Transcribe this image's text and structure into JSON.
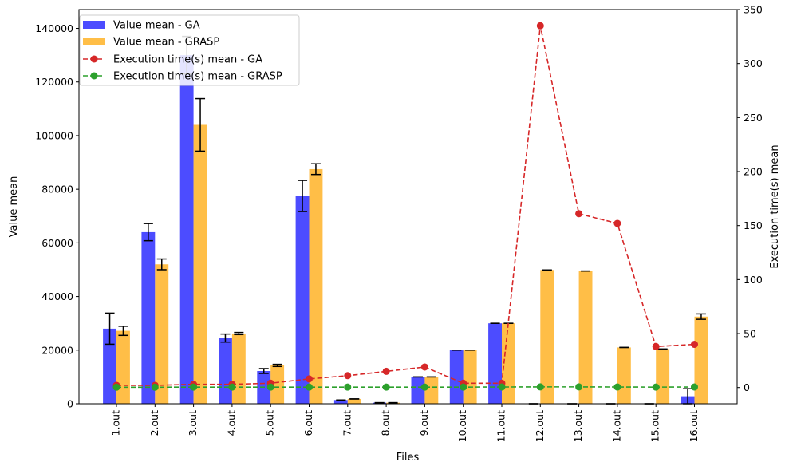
{
  "chart_data": {
    "type": "bar",
    "xlabel": "Files",
    "ylabel": "Value mean",
    "y2label": "Execution time(s) mean",
    "categories": [
      "1.out",
      "2.out",
      "3.out",
      "4.out",
      "5.out",
      "6.out",
      "7.out",
      "8.out",
      "9.out",
      "10.out",
      "11.out",
      "12.out",
      "13.out",
      "14.out",
      "15.out",
      "16.out"
    ],
    "ylim": [
      0,
      147000
    ],
    "y2lim": [
      -15,
      350
    ],
    "yticks": [
      0,
      20000,
      40000,
      60000,
      80000,
      100000,
      120000,
      140000
    ],
    "y2ticks": [
      0,
      50,
      100,
      150,
      200,
      250,
      300,
      350
    ],
    "legend_position": "top-left",
    "grid": false,
    "bar_series": [
      {
        "name": "Value mean - GA",
        "color": "#0000ff",
        "values": [
          28000,
          64000,
          130000,
          24500,
          12200,
          77500,
          1400,
          400,
          10000,
          20000,
          30000,
          0,
          0,
          0,
          0,
          2800
        ],
        "errors": [
          5800,
          3200,
          7000,
          1500,
          900,
          5800,
          0,
          0,
          0,
          0,
          0,
          0,
          0,
          0,
          0,
          2800
        ]
      },
      {
        "name": "Value mean - GRASP",
        "color": "#ffa500",
        "values": [
          27200,
          52000,
          104000,
          26200,
          14300,
          87500,
          1800,
          400,
          10000,
          20000,
          30000,
          49900,
          49500,
          21000,
          20400,
          32500
        ],
        "errors": [
          1700,
          2000,
          9800,
          400,
          400,
          2000,
          0,
          0,
          0,
          0,
          0,
          0,
          0,
          0,
          0,
          1000
        ]
      }
    ],
    "line_series": [
      {
        "name": "Execution time(s) mean - GA",
        "color": "#d62728",
        "values": [
          2,
          2,
          3,
          3,
          4,
          8,
          11,
          15,
          19,
          4,
          4,
          335,
          161,
          152,
          38,
          40
        ]
      },
      {
        "name": "Execution time(s) mean - GRASP",
        "color": "#2ca02c",
        "values": [
          0.3,
          0.3,
          0.4,
          0.4,
          0.4,
          0.4,
          0.4,
          0.4,
          0.4,
          0.4,
          0.5,
          0.6,
          0.6,
          0.5,
          0.4,
          0.5
        ]
      }
    ]
  }
}
